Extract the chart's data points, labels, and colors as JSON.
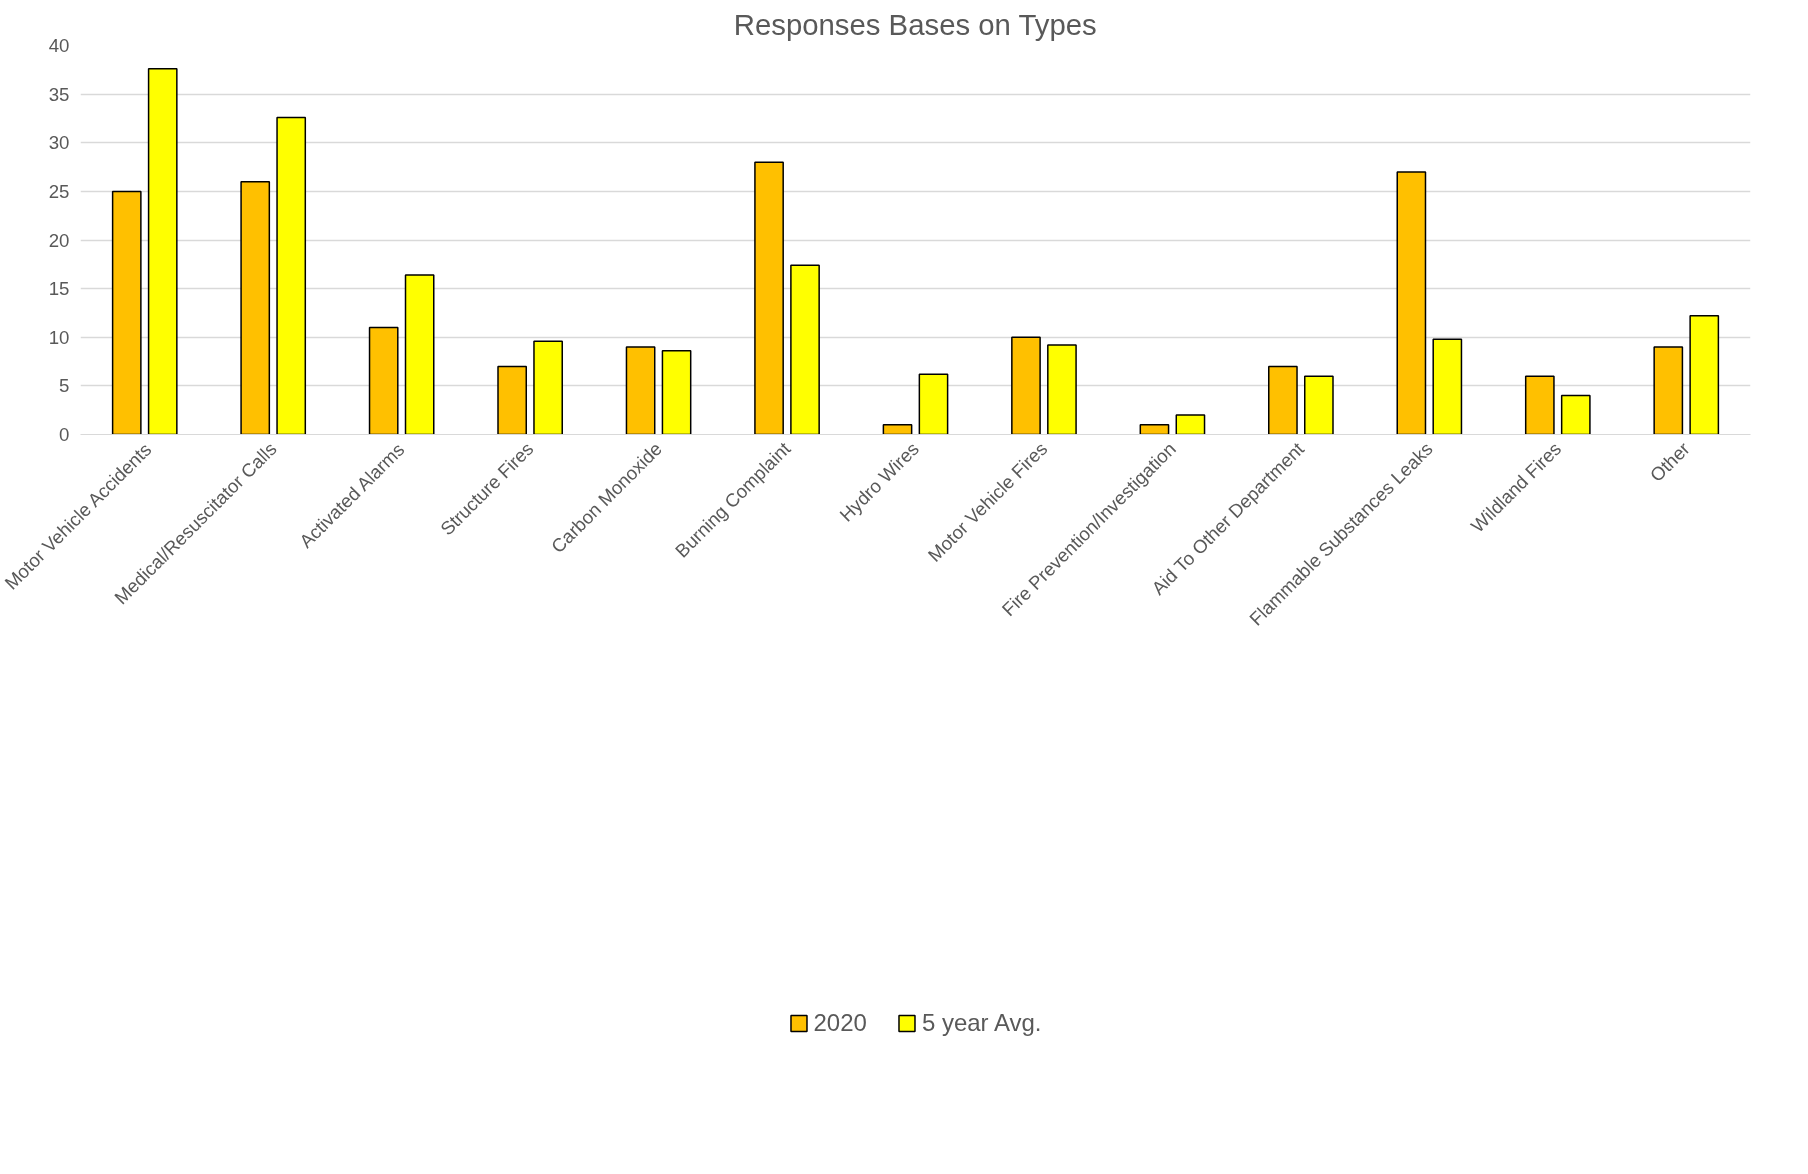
{
  "chart_data": {
    "type": "bar",
    "title": "Responses Bases on Types",
    "categories": [
      "Motor Vehicle Accidents",
      "Medical/Resuscitator Calls",
      "Activated Alarms",
      "Structure Fires",
      "Carbon Monoxide",
      "Burning Complaint",
      "Hydro Wires",
      "Motor Vehicle Fires",
      "Fire Prevention/Investigation",
      "Aid To Other Department",
      "Flammable Substances Leaks",
      "Wildland Fires",
      "Other"
    ],
    "series": [
      {
        "name": "2020",
        "color": "#ffc000",
        "values": [
          25,
          26,
          11,
          7,
          9,
          28,
          1,
          10,
          1,
          7,
          27,
          6,
          9
        ]
      },
      {
        "name": "5 year Avg.",
        "color": "#ffff00",
        "values": [
          37.6,
          32.6,
          16.4,
          9.6,
          8.6,
          17.4,
          6.2,
          9.2,
          2,
          6,
          9.8,
          4,
          12.2
        ]
      }
    ],
    "ylim": [
      0,
      40
    ],
    "yticks": [
      0,
      5,
      10,
      15,
      20,
      25,
      30,
      35,
      40
    ],
    "grid": "y",
    "legend": "bottom"
  }
}
